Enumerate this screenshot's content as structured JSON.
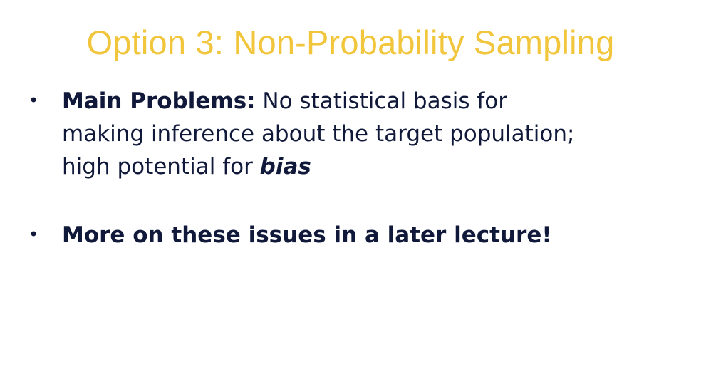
{
  "slide": {
    "title": "Option 3: Non-Probability Sampling",
    "bullets": [
      {
        "bullet_glyph": "•",
        "lead": "Main Problems:",
        "line1_rest": " No statistical basis for",
        "line2": "making inference about the target population;",
        "line3_prefix": "high potential for ",
        "emphasis": "bias"
      },
      {
        "bullet_glyph": "•",
        "text": "More on these issues in a later lecture!"
      }
    ]
  },
  "colors": {
    "title": "#f1c63c",
    "body_text": "#10193a",
    "background": "#ffffff"
  }
}
